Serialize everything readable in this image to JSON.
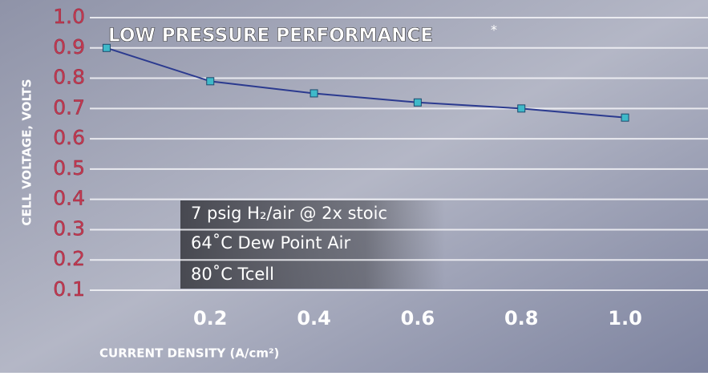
{
  "chart_data": {
    "type": "line",
    "title": "LOW PRESSURE PERFORMANCE",
    "title_mark": "*",
    "x_label": "CURRENT DENSITY (A/cm²)",
    "y_label": "CELL VOLTAGE, VOLTS",
    "annotations": [
      "7 psig H₂/air @ 2x stoic",
      "64˚C Dew Point Air",
      "80˚C Tcell"
    ],
    "x": [
      0,
      0.2,
      0.4,
      0.6,
      0.8,
      1.0
    ],
    "series": [
      {
        "name": "Cell voltage",
        "color": "#2b3a8f",
        "marker_color": "#3fb9c9",
        "values": [
          0.9,
          0.79,
          0.75,
          0.72,
          0.7,
          0.67
        ]
      }
    ],
    "xlim": [
      -0.02,
      1.16
    ],
    "xticks": [
      0.2,
      0.4,
      0.6,
      0.8,
      {
        "value": 1,
        "label": "1.0"
      }
    ],
    "ylim": [
      0.1,
      1.0
    ],
    "yticks": [
      0.1,
      0.2,
      0.3,
      0.4,
      0.5,
      0.6,
      0.7,
      0.8,
      0.9,
      {
        "value": 1,
        "label": "1.0"
      }
    ],
    "grid": true
  }
}
